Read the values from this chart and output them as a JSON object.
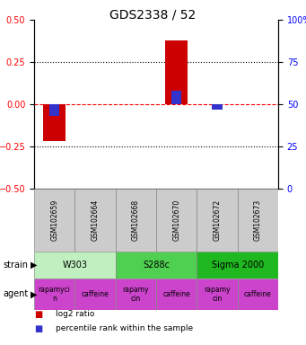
{
  "title": "GDS2338 / 52",
  "samples": [
    "GSM102659",
    "GSM102664",
    "GSM102668",
    "GSM102670",
    "GSM102672",
    "GSM102673"
  ],
  "log2_ratio": [
    -0.22,
    0.0,
    0.0,
    0.38,
    0.0,
    0.0
  ],
  "percentile_rank": [
    43,
    0,
    0,
    58,
    47,
    0
  ],
  "ylim_left": [
    -0.5,
    0.5
  ],
  "ylim_right": [
    0,
    100
  ],
  "yticks_left": [
    -0.5,
    -0.25,
    0.0,
    0.25,
    0.5
  ],
  "yticks_right": [
    0,
    25,
    50,
    75,
    100
  ],
  "red_color": "#cc0000",
  "blue_color": "#3333cc",
  "strain_groups": [
    {
      "label": "W303",
      "span": [
        0,
        2
      ],
      "color": "#c0f0c0"
    },
    {
      "label": "S288c",
      "span": [
        2,
        4
      ],
      "color": "#50d050"
    },
    {
      "label": "Sigma 2000",
      "span": [
        4,
        6
      ],
      "color": "#20b820"
    }
  ],
  "agent_groups": [
    {
      "label": "rapamyci\nn",
      "span": [
        0,
        1
      ],
      "color": "#cc44cc"
    },
    {
      "label": "caffeine",
      "span": [
        1,
        2
      ],
      "color": "#cc44cc"
    },
    {
      "label": "rapamy\ncin",
      "span": [
        2,
        3
      ],
      "color": "#cc44cc"
    },
    {
      "label": "caffeine",
      "span": [
        3,
        4
      ],
      "color": "#cc44cc"
    },
    {
      "label": "rapamy\ncin",
      "span": [
        4,
        5
      ],
      "color": "#cc44cc"
    },
    {
      "label": "caffeine",
      "span": [
        5,
        6
      ],
      "color": "#cc44cc"
    }
  ],
  "legend_red_label": "log2 ratio",
  "legend_blue_label": "percentile rank within the sample",
  "strain_label": "strain",
  "agent_label": "agent",
  "background_color": "#ffffff"
}
